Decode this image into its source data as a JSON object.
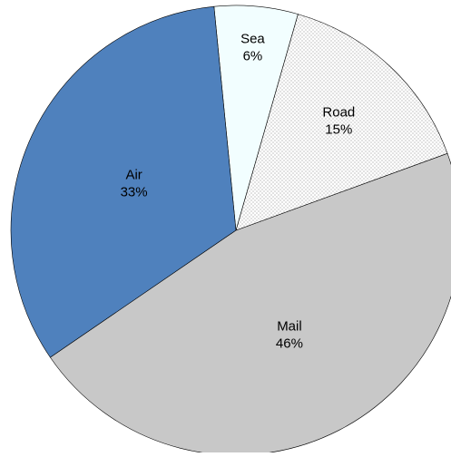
{
  "chart_data": {
    "type": "pie",
    "title": "",
    "slices": [
      {
        "label": "Mail",
        "value": 46,
        "value_label": "46%",
        "color": "#c8c8c8",
        "pattern": "none"
      },
      {
        "label": "Road",
        "value": 15,
        "value_label": "15%",
        "color": "#ffffff",
        "pattern": "dots"
      },
      {
        "label": "Sea",
        "value": 6,
        "value_label": "6%",
        "color": "#f2feff",
        "pattern": "none"
      },
      {
        "label": "Air",
        "value": 33,
        "value_label": "33%",
        "color": "#4f81bd",
        "pattern": "none"
      }
    ],
    "legend": "none",
    "data_labels": "inside"
  }
}
